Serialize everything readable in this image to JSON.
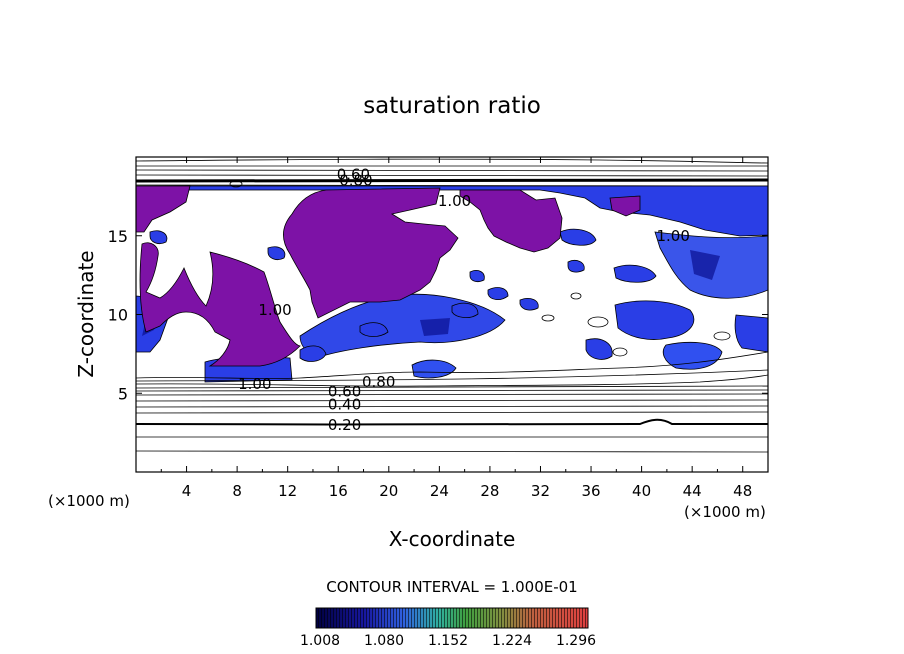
{
  "chart_data": {
    "type": "heatmap",
    "title": "saturation ratio",
    "xlabel": "X-coordinate",
    "ylabel": "Z-coordinate",
    "x_unit": "(×1000 m)",
    "x_unit_right": "(×1000 m)",
    "xlim": [
      0,
      50
    ],
    "ylim": [
      0,
      20
    ],
    "xticks": [
      4,
      8,
      12,
      16,
      20,
      24,
      28,
      32,
      36,
      40,
      44,
      48
    ],
    "yticks": [
      5,
      10,
      15
    ],
    "contour_interval_text": "CONTOUR INTERVAL = 1.000E-01",
    "contour_labels": [
      {
        "text": "0.60",
        "x": 17.2,
        "y": 18.9
      },
      {
        "text": "0.80",
        "x": 17.4,
        "y": 18.5
      },
      {
        "text": "1.00",
        "x": 25.2,
        "y": 17.2
      },
      {
        "text": "1.00",
        "x": 42.5,
        "y": 15.0
      },
      {
        "text": "1.00",
        "x": 11.0,
        "y": 10.3
      },
      {
        "text": "1.00",
        "x": 9.4,
        "y": 5.6
      },
      {
        "text": "0.80",
        "x": 19.2,
        "y": 5.7
      },
      {
        "text": "0.60",
        "x": 16.5,
        "y": 5.1
      },
      {
        "text": "0.40",
        "x": 16.5,
        "y": 4.3
      },
      {
        "text": "0.20",
        "x": 16.5,
        "y": 3.0
      }
    ],
    "colorbar": {
      "min": 1.008,
      "max": 1.296,
      "tick_labels": [
        "1.008",
        "1.080",
        "1.152",
        "1.224",
        "1.296"
      ]
    },
    "colors": {
      "supersaturated": "#7d12a6",
      "blue": "#2a3ee6",
      "blue_light": "#4a6cf0",
      "deep_blue": "#0a1090"
    }
  }
}
